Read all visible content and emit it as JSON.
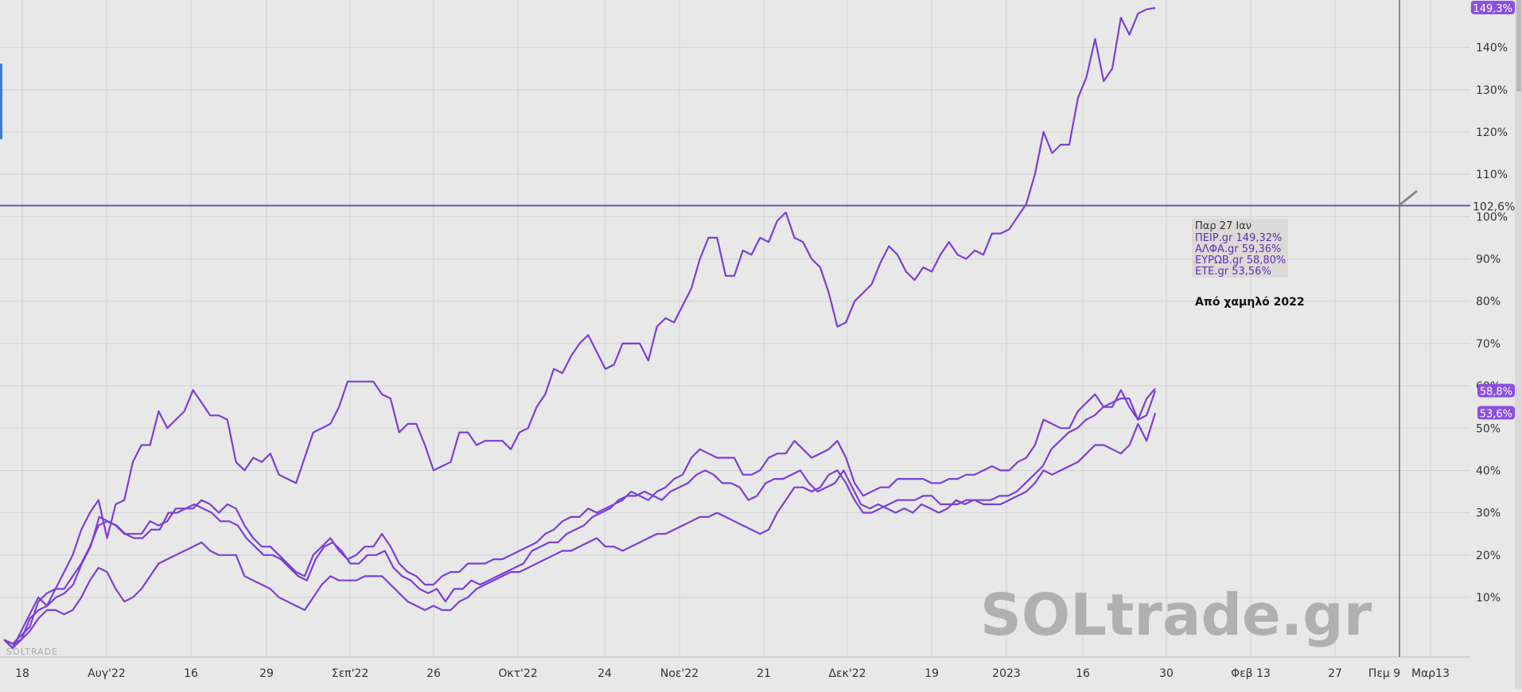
{
  "chart_data": {
    "type": "line",
    "watermark": "SOLtrade.gr",
    "watermark_small": "SOLTRADE",
    "annotation": "Από χαμηλό 2022",
    "tooltip": {
      "title": "Παρ 27 Ιαν",
      "lines": [
        "ΠΕΙΡ.gr 149,32%",
        "ΑΛΦΑ.gr 59,36%",
        "ΕΥΡΩΒ.gr 58,80%",
        "ΕΤΕ.gr 53,56%"
      ]
    },
    "reference_line": {
      "value": 102.6,
      "label": "102,6%"
    },
    "crosshair_label": "Πεμ 9",
    "ylim": [
      -5,
      152
    ],
    "y_ticks": [
      {
        "v": 10,
        "label": "10%"
      },
      {
        "v": 20,
        "label": "20%"
      },
      {
        "v": 30,
        "label": "30%"
      },
      {
        "v": 40,
        "label": "40%"
      },
      {
        "v": 50,
        "label": "50%"
      },
      {
        "v": 60,
        "label": "60%"
      },
      {
        "v": 70,
        "label": "70%"
      },
      {
        "v": 80,
        "label": "80%"
      },
      {
        "v": 90,
        "label": "90%"
      },
      {
        "v": 100,
        "label": "100%"
      },
      {
        "v": 110,
        "label": "110%"
      },
      {
        "v": 120,
        "label": "120%"
      },
      {
        "v": 130,
        "label": "130%"
      },
      {
        "v": 140,
        "label": "140%"
      }
    ],
    "x_ticks": [
      "18",
      "Αυγ'22",
      "16",
      "29",
      "Σεπ'22",
      "26",
      "Οκτ'22",
      "24",
      "Νοε'22",
      "21",
      "Δεκ'22",
      "19",
      "2023",
      "16",
      "30",
      "Φεβ 13",
      "27",
      "Μαρ13"
    ],
    "end_labels": [
      {
        "label": "149,3%",
        "value": 149.32
      },
      {
        "label": "58,8%",
        "value": 58.8
      },
      {
        "label": "53,6%",
        "value": 53.56
      }
    ],
    "grid": true,
    "line_color": "#7b3fd8",
    "series": [
      {
        "name": "ΠΕΙΡ.gr",
        "values": [
          0,
          -2,
          2,
          6,
          10,
          8,
          12,
          16,
          20,
          26,
          30,
          33,
          24,
          32,
          33,
          42,
          46,
          46,
          54,
          50,
          52,
          54,
          59,
          56,
          53,
          53,
          52,
          42,
          40,
          43,
          42,
          44,
          39,
          38,
          37,
          43,
          49,
          50,
          51,
          55,
          61,
          61,
          61,
          61,
          58,
          57,
          49,
          51,
          51,
          46,
          40,
          41,
          42,
          49,
          49,
          46,
          47,
          47,
          47,
          45,
          49,
          50,
          55,
          58,
          64,
          63,
          67,
          70,
          72,
          68,
          64,
          65,
          70,
          70,
          70,
          66,
          74,
          76,
          75,
          79,
          83,
          90,
          95,
          95,
          86,
          86,
          92,
          91,
          95,
          94,
          99,
          101,
          95,
          94,
          90,
          88,
          82,
          74,
          75,
          80,
          82,
          84,
          89,
          93,
          91,
          87,
          85,
          88,
          87,
          91,
          94,
          91,
          90,
          92,
          91,
          96,
          96,
          97,
          100,
          103,
          110,
          120,
          115,
          117,
          117,
          128,
          133,
          142,
          132,
          135,
          147,
          143,
          148,
          149,
          149.32
        ]
      },
      {
        "name": "ΑΛΦΑ.gr",
        "values": [
          0,
          -1,
          1,
          3,
          9,
          11,
          12,
          12,
          15,
          18,
          22,
          27,
          28,
          27,
          25,
          25,
          25,
          28,
          27,
          28,
          31,
          31,
          31,
          33,
          32,
          30,
          32,
          31,
          27,
          24,
          22,
          22,
          20,
          18,
          16,
          15,
          20,
          22,
          24,
          21,
          19,
          20,
          22,
          22,
          25,
          22,
          18,
          16,
          15,
          13,
          13,
          15,
          16,
          16,
          18,
          18,
          18,
          19,
          19,
          20,
          21,
          22,
          23,
          25,
          26,
          28,
          29,
          29,
          31,
          30,
          31,
          32,
          33,
          35,
          34,
          33,
          35,
          36,
          38,
          39,
          43,
          45,
          44,
          43,
          43,
          43,
          39,
          39,
          40,
          43,
          44,
          44,
          47,
          45,
          43,
          44,
          45,
          47,
          43,
          37,
          34,
          35,
          36,
          36,
          38,
          38,
          38,
          38,
          37,
          37,
          38,
          38,
          39,
          39,
          40,
          41,
          40,
          40,
          42,
          43,
          46,
          52,
          51,
          50,
          50,
          54,
          56,
          58,
          55,
          55,
          59,
          55,
          52,
          57,
          59.36
        ]
      },
      {
        "name": "ΕΥΡΩΒ.gr",
        "values": [
          0,
          -2,
          0,
          5,
          7,
          8,
          10,
          11,
          13,
          18,
          22,
          29,
          28,
          27,
          25,
          24,
          24,
          26,
          26,
          30,
          30,
          31,
          32,
          31,
          30,
          28,
          28,
          27,
          24,
          22,
          20,
          20,
          19,
          17,
          15,
          14,
          19,
          22,
          23,
          21,
          18,
          18,
          20,
          20,
          21,
          17,
          15,
          14,
          12,
          11,
          12,
          9,
          12,
          12,
          14,
          13,
          14,
          15,
          16,
          17,
          18,
          21,
          22,
          23,
          23,
          25,
          26,
          27,
          29,
          30,
          31,
          33,
          34,
          34,
          35,
          34,
          33,
          35,
          36,
          37,
          39,
          40,
          39,
          37,
          37,
          36,
          33,
          34,
          37,
          38,
          38,
          39,
          40,
          37,
          35,
          36,
          37,
          40,
          36,
          32,
          31,
          32,
          31,
          30,
          31,
          30,
          32,
          31,
          30,
          31,
          33,
          32,
          33,
          33,
          33,
          34,
          34,
          35,
          37,
          39,
          41,
          45,
          47,
          49,
          50,
          52,
          53,
          55,
          56,
          57,
          57,
          52,
          53,
          58.8
        ]
      },
      {
        "name": "ΕΤΕ.gr",
        "values": [
          0,
          -1,
          0,
          2,
          5,
          7,
          7,
          6,
          7,
          10,
          14,
          17,
          16,
          12,
          9,
          10,
          12,
          15,
          18,
          19,
          20,
          21,
          22,
          23,
          21,
          20,
          20,
          20,
          15,
          14,
          13,
          12,
          10,
          9,
          8,
          7,
          10,
          13,
          15,
          14,
          14,
          14,
          15,
          15,
          15,
          13,
          11,
          9,
          8,
          7,
          8,
          7,
          7,
          9,
          10,
          12,
          13,
          14,
          15,
          16,
          16,
          17,
          18,
          19,
          20,
          21,
          21,
          22,
          23,
          24,
          22,
          22,
          21,
          22,
          23,
          24,
          25,
          25,
          26,
          27,
          28,
          29,
          29,
          30,
          29,
          28,
          27,
          26,
          25,
          26,
          30,
          33,
          36,
          36,
          35,
          36,
          39,
          40,
          37,
          33,
          30,
          30,
          31,
          32,
          33,
          33,
          33,
          34,
          34,
          32,
          32,
          32,
          33,
          33,
          32,
          32,
          32,
          33,
          34,
          35,
          37,
          40,
          39,
          40,
          41,
          42,
          44,
          46,
          46,
          45,
          44,
          46,
          51,
          47,
          53.56
        ]
      }
    ]
  }
}
